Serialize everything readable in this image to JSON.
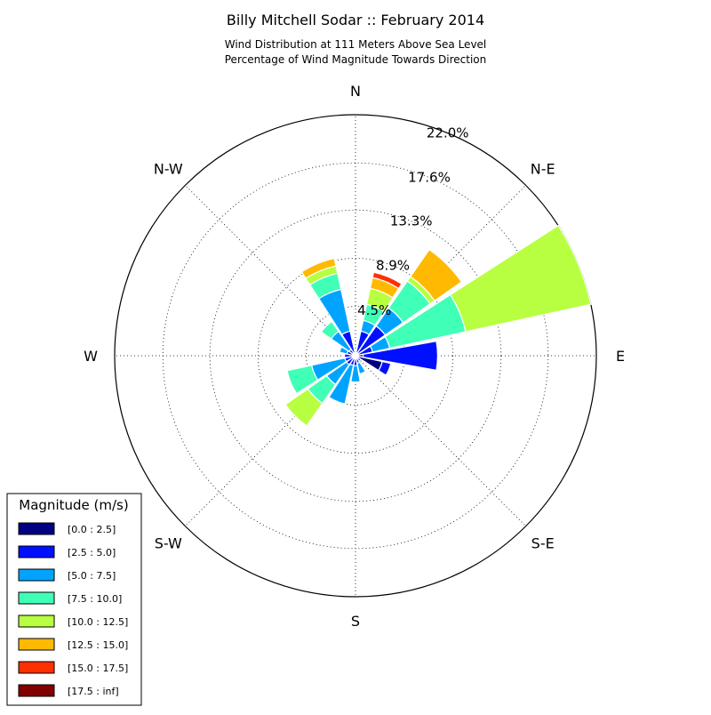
{
  "chart_data": {
    "type": "windrose",
    "title": "Billy Mitchell Sodar :: February 2014",
    "subtitle_line1": "Wind Distribution at 111 Meters Above Sea Level",
    "subtitle_line2": "Percentage of Wind Magnitude Towards Direction",
    "directions": [
      "N",
      "N-E",
      "E",
      "S-E",
      "S",
      "S-W",
      "W",
      "N-W"
    ],
    "radial_ticks": [
      4.5,
      8.9,
      13.3,
      17.6,
      22.0
    ],
    "radial_tick_labels": [
      "4.5%",
      "8.9%",
      "13.3%",
      "17.6%",
      "22.0%"
    ],
    "rmax": 22.0,
    "grid": true,
    "legend": {
      "title": "Magnitude (m/s)",
      "position": "bottom-left",
      "bins": [
        {
          "label": "[0.0 : 2.5]",
          "color": "#000080"
        },
        {
          "label": "[2.5 : 5.0]",
          "color": "#0010ff"
        },
        {
          "label": "[5.0 : 7.5]",
          "color": "#00a4ff"
        },
        {
          "label": "[7.5 : 10.0]",
          "color": "#40ffb7"
        },
        {
          "label": "[10.0 : 12.5]",
          "color": "#b7ff40"
        },
        {
          "label": "[12.5 : 15.0]",
          "color": "#ffb900"
        },
        {
          "label": "[15.0 : 17.5]",
          "color": "#ff3000"
        },
        {
          "label": "[17.5 : inf]",
          "color": "#800000"
        }
      ]
    },
    "sectors": [
      {
        "direction_deg": 0,
        "cumulative": [
          0.0,
          0.3,
          0.5
        ]
      },
      {
        "direction_deg": 22.5,
        "cumulative": [
          0.3,
          2.3,
          3.3,
          4.8,
          6.3,
          7.3,
          7.8
        ]
      },
      {
        "direction_deg": 45,
        "cumulative": [
          0.3,
          3.3,
          5.3,
          8.3,
          8.8,
          11.8
        ]
      },
      {
        "direction_deg": 67.5,
        "cumulative": [
          0.3,
          1.6,
          3.2,
          10.3,
          22.0
        ]
      },
      {
        "direction_deg": 90,
        "cumulative": [
          0.7,
          7.5
        ]
      },
      {
        "direction_deg": 112.5,
        "cumulative": [
          2.5,
          3.3
        ]
      },
      {
        "direction_deg": 135,
        "cumulative": [
          0.2,
          0.6
        ]
      },
      {
        "direction_deg": 157.5,
        "cumulative": [
          0.3,
          0.7,
          1.7
        ]
      },
      {
        "direction_deg": 180,
        "cumulative": [
          0.3,
          0.9,
          2.4
        ]
      },
      {
        "direction_deg": 202.5,
        "cumulative": [
          0.3,
          0.9,
          4.5
        ]
      },
      {
        "direction_deg": 225,
        "cumulative": [
          0.3,
          1.0,
          3.2,
          5.3,
          7.8
        ]
      },
      {
        "direction_deg": 247.5,
        "cumulative": [
          0.3,
          1.0,
          4.1,
          6.4
        ]
      },
      {
        "direction_deg": 270,
        "cumulative": [
          0.3,
          1.0
        ]
      },
      {
        "direction_deg": 292.5,
        "cumulative": [
          0.3,
          0.8,
          1.5
        ]
      },
      {
        "direction_deg": 315,
        "cumulative": [
          0.3,
          0.7,
          2.7,
          3.8
        ]
      },
      {
        "direction_deg": 337.5,
        "cumulative": [
          0.3,
          2.3,
          6.2,
          7.7,
          8.4,
          9.1
        ]
      }
    ]
  }
}
